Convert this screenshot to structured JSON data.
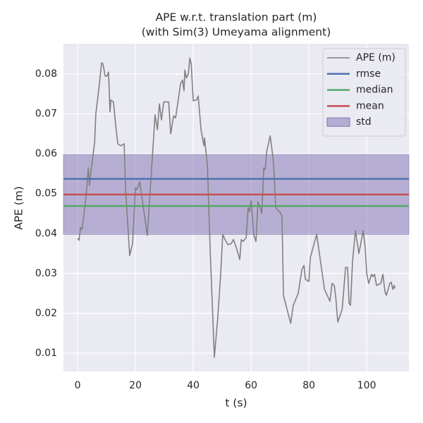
{
  "chart_data": {
    "type": "line",
    "title": "APE w.r.t. translation part (m)",
    "subtitle": "(with Sim(3) Umeyama alignment)",
    "x_label": "t (s)",
    "y_label": "APE (m)",
    "xlim": [
      -4.9,
      114.6
    ],
    "ylim": [
      0.0054,
      0.0876
    ],
    "xticks": [
      0,
      20,
      40,
      60,
      80,
      100
    ],
    "yticks": [
      0.01,
      0.02,
      0.03,
      0.04,
      0.05,
      0.06,
      0.07,
      0.08
    ],
    "grid": true,
    "legend": "upper right",
    "series": [
      {
        "name": "APE (m)",
        "color": "#808080",
        "x": [
          0,
          0.5,
          1,
          1.5,
          2,
          3,
          3.7,
          4.1,
          4.6,
          5.9,
          6.3,
          7.3,
          8.3,
          8.8,
          9.5,
          10.2,
          10.7,
          11.2,
          11.5,
          12.4,
          13.2,
          13.9,
          14.9,
          16.1,
          16.6,
          18,
          19,
          20,
          20.5,
          21.5,
          24.1,
          26.8,
          27.6,
          28.3,
          29,
          29.8,
          31.5,
          32.2,
          33.2,
          33.9,
          35.6,
          36.3,
          36.8,
          37.1,
          37.6,
          38.3,
          38.8,
          39.3,
          40,
          41.2,
          41.7,
          42.7,
          43.7,
          43.9,
          44.9,
          45.9,
          47.3,
          48.5,
          49.5,
          50.2,
          51,
          52,
          53.2,
          53.9,
          54.9,
          56.1,
          56.6,
          57.3,
          58.3,
          59,
          59.5,
          60,
          61,
          61.7,
          62.4,
          63.2,
          63.7,
          64.4,
          64.9,
          65.4,
          66.6,
          67.6,
          68,
          68.5,
          69.8,
          70.7,
          71.2,
          73.7,
          74.6,
          76.3,
          77.6,
          78.3,
          78.8,
          80,
          80.5,
          82.7,
          85.4,
          87.3,
          88,
          88.8,
          89.3,
          90,
          91.5,
          92.7,
          93.4,
          93.9,
          94.4,
          95.1,
          96.1,
          97.3,
          98.8,
          99.5,
          100,
          100.7,
          101.7,
          102.2,
          102.7,
          103.4,
          104.9,
          105.6,
          106.3,
          106.8,
          108,
          108.5,
          109,
          109.5,
          109.8
        ],
        "values": [
          0.0388,
          0.0383,
          0.0415,
          0.041,
          0.0435,
          0.05,
          0.0565,
          0.052,
          0.0555,
          0.063,
          0.07,
          0.076,
          0.0828,
          0.0825,
          0.0795,
          0.0795,
          0.0805,
          0.0705,
          0.0735,
          0.073,
          0.067,
          0.0625,
          0.062,
          0.0625,
          0.0512,
          0.0345,
          0.0375,
          0.0515,
          0.051,
          0.053,
          0.0395,
          0.0698,
          0.066,
          0.0725,
          0.0685,
          0.073,
          0.073,
          0.065,
          0.0695,
          0.069,
          0.0775,
          0.0785,
          0.0758,
          0.081,
          0.079,
          0.08,
          0.084,
          0.0825,
          0.0733,
          0.0735,
          0.0745,
          0.066,
          0.062,
          0.064,
          0.057,
          0.035,
          0.009,
          0.019,
          0.03,
          0.0398,
          0.0385,
          0.0372,
          0.0375,
          0.0385,
          0.0365,
          0.0335,
          0.0385,
          0.038,
          0.039,
          0.0465,
          0.0455,
          0.0483,
          0.0395,
          0.038,
          0.048,
          0.0465,
          0.045,
          0.0565,
          0.056,
          0.0605,
          0.0645,
          0.059,
          0.055,
          0.0465,
          0.0455,
          0.0445,
          0.0245,
          0.0175,
          0.022,
          0.025,
          0.031,
          0.032,
          0.0285,
          0.028,
          0.034,
          0.0398,
          0.026,
          0.023,
          0.0275,
          0.027,
          0.024,
          0.0178,
          0.021,
          0.0315,
          0.0315,
          0.0225,
          0.022,
          0.033,
          0.0407,
          0.035,
          0.0407,
          0.0365,
          0.03,
          0.0275,
          0.0298,
          0.0292,
          0.0298,
          0.027,
          0.0275,
          0.0298,
          0.0255,
          0.0245,
          0.0275,
          0.0278,
          0.026,
          0.027,
          0.0262
        ]
      }
    ],
    "stats": [
      {
        "name": "rmse",
        "color": "#4c72b0",
        "value": 0.0537
      },
      {
        "name": "median",
        "color": "#55a868",
        "value": 0.0469
      },
      {
        "name": "mean",
        "color": "#c44e52",
        "value": 0.0498
      }
    ],
    "std": {
      "name": "std",
      "color": "#8172b2",
      "value": 0.01
    }
  }
}
